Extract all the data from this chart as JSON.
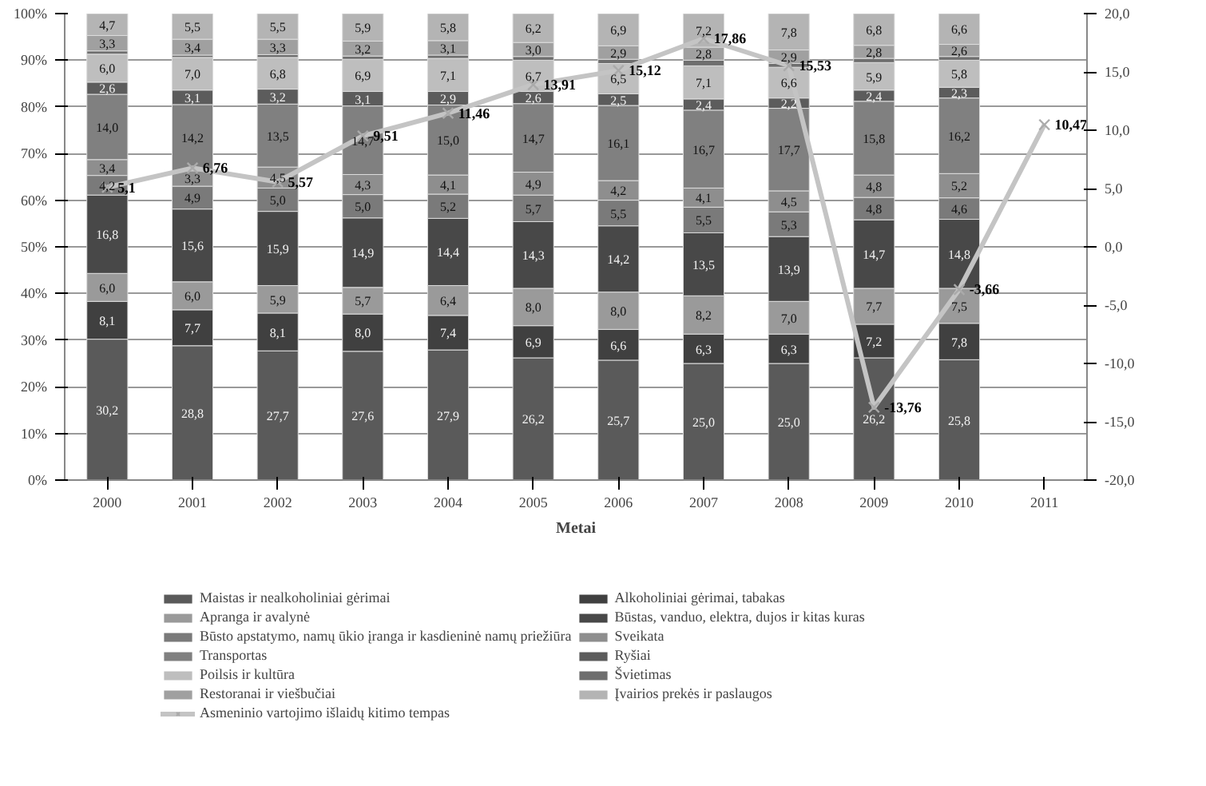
{
  "chart_data": {
    "type": "bar",
    "stacked": true,
    "xlabel": "Metai",
    "categories": [
      "2000",
      "2001",
      "2002",
      "2003",
      "2004",
      "2005",
      "2006",
      "2007",
      "2008",
      "2009",
      "2010",
      "2011"
    ],
    "ylim": [
      0,
      100
    ],
    "yticks": [
      {
        "value": 0,
        "label": "0%"
      },
      {
        "value": 10,
        "label": "10%"
      },
      {
        "value": 20,
        "label": "20%"
      },
      {
        "value": 30,
        "label": "30%"
      },
      {
        "value": 40,
        "label": "40%"
      },
      {
        "value": 50,
        "label": "50%"
      },
      {
        "value": 60,
        "label": "60%"
      },
      {
        "value": 70,
        "label": "70%"
      },
      {
        "value": 80,
        "label": "80%"
      },
      {
        "value": 90,
        "label": "90%"
      },
      {
        "value": 100,
        "label": "100%"
      }
    ],
    "y2lim": [
      -20,
      20
    ],
    "y2ticks": [
      {
        "value": -20,
        "label": "-20,0"
      },
      {
        "value": -15,
        "label": "-15,0"
      },
      {
        "value": -10,
        "label": "-10,0"
      },
      {
        "value": -5,
        "label": "-5,0"
      },
      {
        "value": 0,
        "label": "0,0"
      },
      {
        "value": 5,
        "label": "5,0"
      },
      {
        "value": 10,
        "label": "10,0"
      },
      {
        "value": 15,
        "label": "15,0"
      },
      {
        "value": 20,
        "label": "20,0"
      }
    ],
    "grid": "y",
    "legend": "bottom",
    "series": [
      {
        "name": "Maistas ir nealkoholiniai gėrimai",
        "color": "#5a5a5a",
        "values": [
          30.2,
          28.8,
          27.7,
          27.6,
          27.9,
          26.2,
          25.7,
          25.0,
          25.0,
          26.2,
          25.8,
          null
        ],
        "value_labels": [
          "30,2",
          "28,8",
          "27,7",
          "27,6",
          "27,9",
          "26,2",
          "25,7",
          "25,0",
          "25,0",
          "26,2",
          "25,8",
          null
        ]
      },
      {
        "name": "Alkoholiniai gėrimai, tabakas",
        "color": "#404040",
        "values": [
          8.1,
          7.7,
          8.1,
          8.0,
          7.4,
          6.9,
          6.6,
          6.3,
          6.3,
          7.2,
          7.8,
          null
        ],
        "value_labels": [
          "8,1",
          "7,7",
          "8,1",
          "8,0",
          "7,4",
          "6,9",
          "6,6",
          "6,3",
          "6,3",
          "7,2",
          "7,8",
          null
        ]
      },
      {
        "name": "Apranga ir avalynė",
        "color": "#9a9a9a",
        "values": [
          6.0,
          6.0,
          5.9,
          5.7,
          6.4,
          8.0,
          8.0,
          8.2,
          7.0,
          7.7,
          7.5,
          null
        ],
        "value_labels": [
          "6,0",
          "6,0",
          "5,9",
          "5,7",
          "6,4",
          "8,0",
          "8,0",
          "8,2",
          "7,0",
          "7,7",
          "7,5",
          null
        ]
      },
      {
        "name": "Būstas, vanduo, elektra, dujos ir kitas kuras",
        "color": "#484848",
        "values": [
          16.8,
          15.6,
          15.9,
          14.9,
          14.4,
          14.3,
          14.2,
          13.5,
          13.9,
          14.7,
          14.8,
          null
        ],
        "value_labels": [
          "16,8",
          "15,6",
          "15,9",
          "14,9",
          "14,4",
          "14,3",
          "14,2",
          "13,5",
          "13,9",
          "14,7",
          "14,8",
          null
        ]
      },
      {
        "name": "Būsto apstatymo, namų ūkio įranga ir kasdieninė namų priežiūra",
        "color": "#7a7a7a",
        "values": [
          4.2,
          4.9,
          5.0,
          5.0,
          5.2,
          5.7,
          5.5,
          5.5,
          5.3,
          4.8,
          4.6,
          null
        ],
        "value_labels": [
          "4,2",
          "4,9",
          "5,0",
          "5,0",
          "5,2",
          "5,7",
          "5,5",
          "5,5",
          "5,3",
          "4,8",
          "4,6",
          null
        ]
      },
      {
        "name": "Sveikata",
        "color": "#8e8e8e",
        "values": [
          3.4,
          3.3,
          4.5,
          4.3,
          4.1,
          4.9,
          4.2,
          4.1,
          4.5,
          4.8,
          5.2,
          null
        ],
        "value_labels": [
          "3,4",
          "3,3",
          "4,5",
          "4,3",
          "4,1",
          "4,9",
          "4,2",
          "4,1",
          "4,5",
          "4,8",
          "5,2",
          null
        ]
      },
      {
        "name": "Transportas",
        "color": "#808080",
        "values": [
          14.0,
          14.2,
          13.5,
          14.7,
          15.0,
          14.7,
          16.1,
          16.7,
          17.7,
          15.8,
          16.2,
          null
        ],
        "value_labels": [
          "14,0",
          "14,2",
          "13,5",
          "14,7",
          "15,0",
          "14,7",
          "16,1",
          "16,7",
          "17,7",
          "15,8",
          "16,2",
          null
        ]
      },
      {
        "name": "Ryšiai",
        "color": "#5c5c5c",
        "values": [
          2.6,
          3.1,
          3.2,
          3.1,
          2.9,
          2.6,
          2.5,
          2.4,
          2.2,
          2.4,
          2.3,
          null
        ],
        "value_labels": [
          "2,6",
          "3,1",
          "3,2",
          "3,1",
          "2,9",
          "2,6",
          "2,5",
          "2,4",
          "2,2",
          "2,4",
          "2,3",
          null
        ]
      },
      {
        "name": "Poilsis ir kultūra",
        "color": "#bebebe",
        "values": [
          6.0,
          7.0,
          6.8,
          6.9,
          7.1,
          6.7,
          6.5,
          7.1,
          6.6,
          5.9,
          5.8,
          null
        ],
        "value_labels": [
          "6,0",
          "7,0",
          "6,8",
          "6,9",
          "7,1",
          "6,7",
          "6,5",
          "7,1",
          "6,6",
          "5,9",
          "5,8",
          null
        ]
      },
      {
        "name": "Švietimas",
        "color": "#6e6e6e",
        "values": [
          0.7,
          0.5,
          0.6,
          0.7,
          0.7,
          0.8,
          0.9,
          1.2,
          0.8,
          0.9,
          0.8,
          null
        ]
      },
      {
        "name": "Restoranai ir viešbučiai",
        "color": "#a0a0a0",
        "values": [
          3.3,
          3.4,
          3.3,
          3.2,
          3.1,
          3.0,
          2.9,
          2.8,
          2.9,
          2.8,
          2.6,
          null
        ],
        "value_labels": [
          "3,3",
          "3,4",
          "3,3",
          "3,2",
          "3,1",
          "3,0",
          "2,9",
          "2,8",
          "2,9",
          "2,8",
          "2,6",
          null
        ]
      },
      {
        "name": "Įvairios prekės ir paslaugos",
        "color": "#b4b4b4",
        "values": [
          4.7,
          5.5,
          5.5,
          5.9,
          5.8,
          6.2,
          6.9,
          7.2,
          7.8,
          6.8,
          6.6,
          null
        ],
        "value_labels": [
          "4,7",
          "5,5",
          "5,5",
          "5,9",
          "5,8",
          "6,2",
          "6,9",
          "7,2",
          "7,8",
          "6,8",
          "6,6",
          null
        ]
      },
      {
        "name": "Asmeninio vartojimo išlaidų kitimo tempas",
        "type": "line",
        "axis": "y2",
        "color": "#c4c4c4",
        "marker": "cross",
        "values": [
          5.1,
          6.76,
          5.57,
          9.51,
          11.46,
          13.91,
          15.12,
          17.86,
          15.53,
          -13.76,
          -3.66,
          10.47
        ],
        "value_labels": [
          "5,1",
          "6,76",
          "5,57",
          "9,51",
          "11,46",
          "13,91",
          "15,12",
          "17,86",
          "15,53",
          "-13,76",
          "-3,66",
          "10,47"
        ]
      }
    ]
  }
}
